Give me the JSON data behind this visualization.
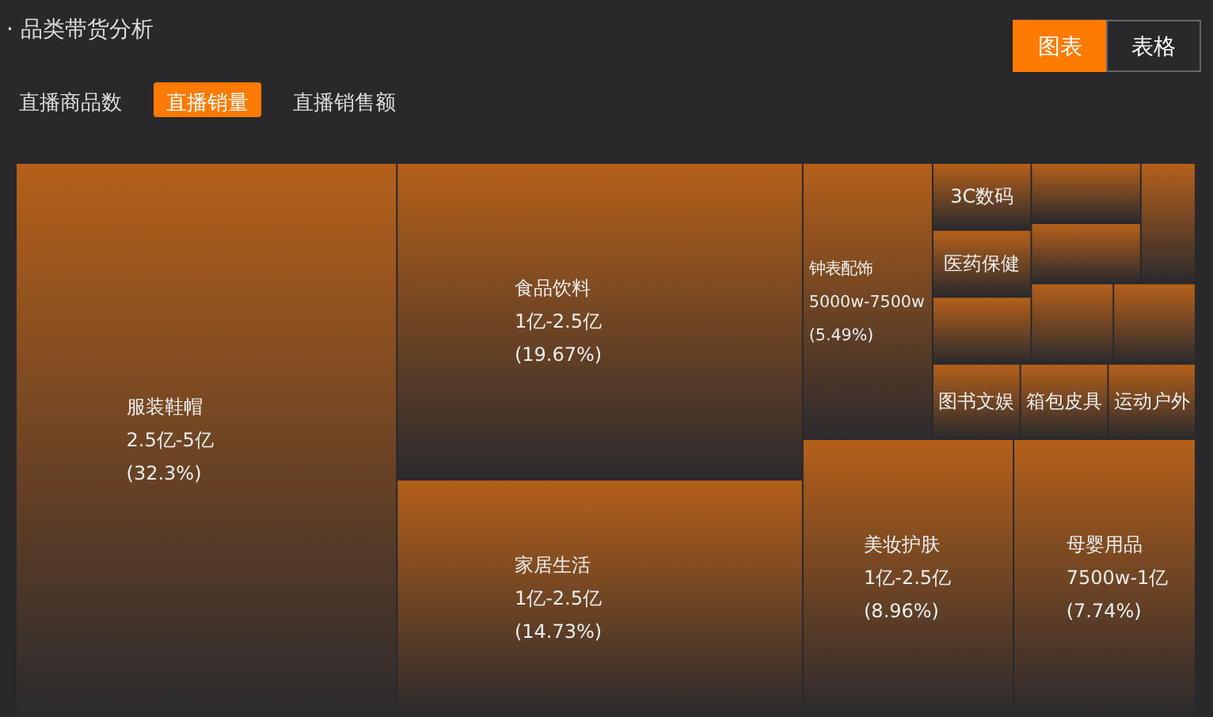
{
  "chart_data": {
    "type": "other",
    "title": "· 品类带货分析",
    "annotations": [
      "直播商品数",
      "直播销量",
      "直播销售额",
      "图表",
      "表格",
      {
        "text": "2.5亿-5亿",
        "x": "服装鞋帽"
      },
      {
        "text": "1亿-2.5亿",
        "x": "食品饮料"
      },
      {
        "text": "1亿-2.5亿",
        "x": "家居生活"
      },
      {
        "text": "1亿-2.5亿",
        "x": "美妆护肤"
      },
      {
        "text": "7500w-1亿",
        "x": "母婴用品"
      },
      {
        "text": "5000w-7500w",
        "x": "钟表配饰"
      }
    ],
    "categories": [
      "服装鞋帽",
      "食品饮料",
      "家居生活",
      "美妆护肤",
      "母婴用品",
      "钟表配饰",
      "图书文娱",
      "箱包皮具",
      "运动户外",
      "3C数码",
      "医药保健",
      null,
      null,
      null,
      null,
      null,
      null
    ],
    "values": [
      32.3,
      19.67,
      14.73,
      8.96,
      7.74,
      5.49,
      null,
      null,
      null,
      null,
      null,
      null,
      null,
      null,
      null,
      null,
      null
    ],
    "value_labels": [
      "(32.3%)",
      "(19.67%)",
      "(14.73%)",
      "(8.96%)",
      "(7.74%)",
      "(5.49%)",
      null,
      null,
      null,
      null,
      null,
      null,
      null,
      null,
      null,
      null,
      null
    ],
    "color": "#b5601a"
  }
}
